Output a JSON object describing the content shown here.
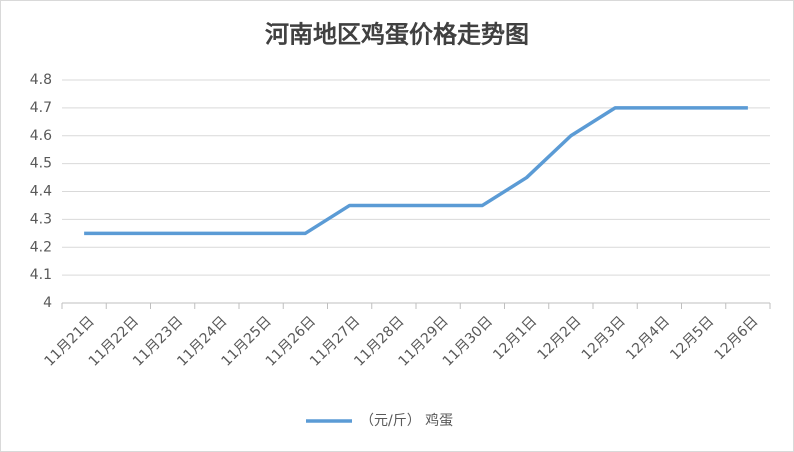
{
  "chart_data": {
    "type": "line",
    "title": "河南地区鸡蛋价格走势图",
    "categories": [
      "11月21日",
      "11月22日",
      "11月23日",
      "11月24日",
      "11月25日",
      "11月26日",
      "11月27日",
      "11月28日",
      "11月29日",
      "11月30日",
      "12月1日",
      "12月2日",
      "12月3日",
      "12月4日",
      "12月5日",
      "12月6日"
    ],
    "series": [
      {
        "name": "（元/斤） 鸡蛋",
        "color": "#5b9bd5",
        "values": [
          4.25,
          4.25,
          4.25,
          4.25,
          4.25,
          4.25,
          4.35,
          4.35,
          4.35,
          4.35,
          4.45,
          4.6,
          4.7,
          4.7,
          4.7,
          4.7
        ]
      }
    ],
    "ylim": [
      4,
      4.8
    ],
    "yticks": [
      4,
      4.1,
      4.2,
      4.3,
      4.4,
      4.5,
      4.6,
      4.7,
      4.8
    ],
    "grid": true
  }
}
